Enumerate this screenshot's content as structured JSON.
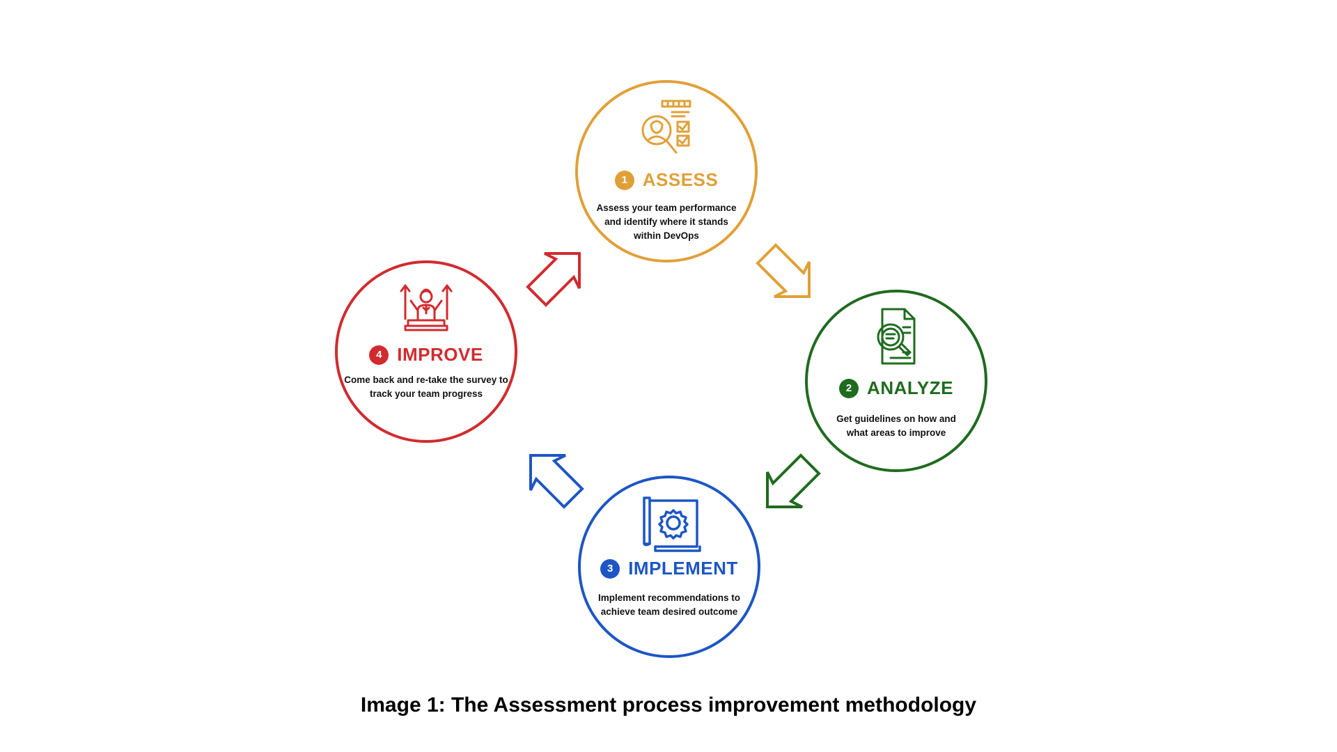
{
  "colors": {
    "assess": "#E0A038",
    "analyze": "#1F6B1F",
    "implement": "#1D56C4",
    "improve": "#D12B2F"
  },
  "steps": [
    {
      "number": "1",
      "title": "ASSESS",
      "description": "Assess your team performance and identify where it stands within DevOps",
      "icon": "assessment-person-checklist-icon"
    },
    {
      "number": "2",
      "title": "ANALYZE",
      "description": "Get guidelines on how and what areas to improve",
      "icon": "document-magnifier-icon"
    },
    {
      "number": "3",
      "title": "IMPLEMENT",
      "description": "Implement recommendations to achieve team desired outcome",
      "icon": "blueprint-gear-icon"
    },
    {
      "number": "4",
      "title": "IMPROVE",
      "description": "Come back and re-take the survey to track your team progress",
      "icon": "person-growth-arrows-icon"
    }
  ],
  "caption": "Image 1: The Assessment process improvement methodology"
}
